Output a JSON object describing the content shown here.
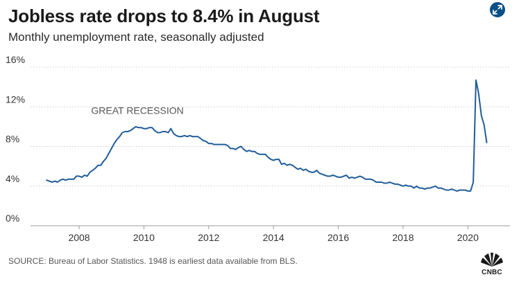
{
  "header": {
    "title": "Jobless rate drops to 8.4% in August",
    "subtitle": "Monthly unemployment rate, seasonally adjusted",
    "expand_icon": "expand-arrows-icon"
  },
  "footer": {
    "source": "SOURCE: Bureau of Labor Statistics. 1948 is earliest data available from BLS.",
    "logo_text": "CNBC"
  },
  "colors": {
    "line": "#1f5c99",
    "accent": "#0a4f87",
    "grid": "#cccccc"
  },
  "chart_data": {
    "type": "line",
    "title": "Jobless rate drops to 8.4% in August",
    "subtitle": "Monthly unemployment rate, seasonally adjusted",
    "xlabel": "",
    "ylabel": "",
    "x_start": "2007-01",
    "x_step": "month",
    "xlim": [
      2006.5,
      2021.3
    ],
    "ylim": [
      0,
      16
    ],
    "x_ticks": [
      2008,
      2010,
      2012,
      2014,
      2016,
      2018,
      2020
    ],
    "x_tick_labels": [
      "2008",
      "2010",
      "2012",
      "2014",
      "2016",
      "2018",
      "2020"
    ],
    "y_ticks": [
      0,
      4,
      8,
      12,
      16
    ],
    "y_tick_labels": [
      "0%",
      "4%",
      "8%",
      "12%",
      "16%"
    ],
    "grid": true,
    "annotations": [
      {
        "text": "GREAT RECESSION",
        "x": 2009.8,
        "y": 10.3
      }
    ],
    "series": [
      {
        "name": "Unemployment rate",
        "values": [
          4.6,
          4.5,
          4.4,
          4.5,
          4.4,
          4.6,
          4.7,
          4.6,
          4.7,
          4.7,
          4.7,
          5.0,
          5.0,
          4.9,
          5.1,
          5.0,
          5.4,
          5.6,
          5.8,
          6.1,
          6.1,
          6.5,
          6.8,
          7.3,
          7.8,
          8.3,
          8.7,
          9.0,
          9.4,
          9.5,
          9.5,
          9.6,
          9.8,
          10.0,
          9.9,
          9.9,
          9.8,
          9.8,
          9.9,
          9.9,
          9.6,
          9.4,
          9.4,
          9.5,
          9.5,
          9.4,
          9.8,
          9.3,
          9.1,
          9.0,
          9.0,
          9.1,
          9.0,
          9.1,
          9.0,
          9.0,
          9.0,
          8.8,
          8.6,
          8.5,
          8.3,
          8.3,
          8.2,
          8.2,
          8.2,
          8.2,
          8.2,
          8.1,
          7.8,
          7.8,
          7.7,
          7.9,
          8.0,
          7.7,
          7.5,
          7.6,
          7.5,
          7.5,
          7.3,
          7.2,
          7.2,
          7.2,
          6.9,
          6.7,
          6.6,
          6.7,
          6.7,
          6.2,
          6.3,
          6.1,
          6.2,
          6.1,
          5.9,
          5.7,
          5.8,
          5.6,
          5.7,
          5.5,
          5.4,
          5.4,
          5.6,
          5.3,
          5.2,
          5.1,
          5.0,
          5.0,
          5.1,
          5.0,
          4.9,
          4.9,
          5.0,
          5.1,
          4.8,
          4.9,
          4.8,
          4.9,
          5.0,
          4.9,
          4.7,
          4.7,
          4.7,
          4.6,
          4.4,
          4.4,
          4.4,
          4.3,
          4.3,
          4.4,
          4.3,
          4.2,
          4.2,
          4.1,
          4.0,
          4.1,
          4.0,
          4.0,
          3.8,
          4.0,
          3.8,
          3.8,
          3.7,
          3.8,
          3.8,
          3.9,
          4.0,
          3.8,
          3.8,
          3.7,
          3.6,
          3.6,
          3.7,
          3.6,
          3.5,
          3.6,
          3.6,
          3.6,
          3.5,
          3.5,
          4.4,
          14.7,
          13.3,
          11.1,
          10.2,
          8.4
        ]
      }
    ]
  }
}
